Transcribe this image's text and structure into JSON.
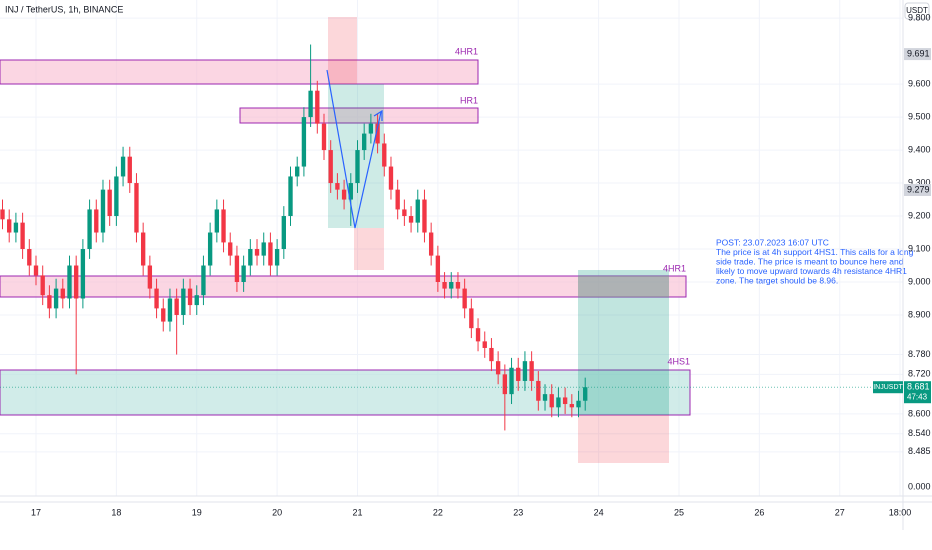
{
  "header": "INJ / TetherUS, 1h, BINANCE",
  "currency_button": "USDT",
  "chart_data": {
    "type": "candlestick",
    "up_color": "#089981",
    "down_color": "#f23645",
    "grid": true,
    "xlim": [
      -10.75,
      258
    ],
    "xticks": [
      {
        "value": 0,
        "label": "17"
      },
      {
        "value": 24,
        "label": "18"
      },
      {
        "value": 48,
        "label": "19"
      },
      {
        "value": 72,
        "label": "20"
      },
      {
        "value": 96,
        "label": "21"
      },
      {
        "value": 120,
        "label": "22"
      },
      {
        "value": 144,
        "label": "23"
      },
      {
        "value": 168,
        "label": "24"
      },
      {
        "value": 192,
        "label": "25"
      },
      {
        "value": 216,
        "label": "26"
      },
      {
        "value": 240,
        "label": "27"
      },
      {
        "value": 258,
        "label": "18:00"
      }
    ],
    "ylim": [
      8.43,
      9.855
    ],
    "yticks": [
      {
        "value": 9.8,
        "label": "9.800"
      },
      {
        "value": 9.6,
        "label": "9.600"
      },
      {
        "value": 9.5,
        "label": "9.500"
      },
      {
        "value": 9.4,
        "label": "9.400"
      },
      {
        "value": 9.3,
        "label": "9.300"
      },
      {
        "value": 9.2,
        "label": "9.200"
      },
      {
        "value": 9.1,
        "label": "9.100"
      },
      {
        "value": 9.0,
        "label": "9.000"
      },
      {
        "value": 8.9,
        "label": "8.900"
      },
      {
        "value": 8.78,
        "label": "8.780"
      },
      {
        "value": 8.72,
        "label": "8.720"
      },
      {
        "value": 8.6,
        "label": "8.600"
      },
      {
        "value": 8.54,
        "label": "8.540"
      },
      {
        "value": 8.485,
        "label": "8.485"
      }
    ],
    "lower_pane_tick": "0.000",
    "price_labels": [
      {
        "value": 9.691,
        "label": "9.691"
      },
      {
        "value": 9.279,
        "label": "9.279"
      }
    ],
    "last_price": {
      "symbol": "INJUSDT",
      "value": 8.681,
      "label": "8.681",
      "countdown": "47:43"
    },
    "zones": [
      {
        "label": "4HR1"
      },
      {
        "label": "HR1"
      },
      {
        "label": "4HR1"
      },
      {
        "label": "4HS1"
      }
    ],
    "annotation": [
      "POST: 23.07.2023 16:07 UTC",
      "The price is at 4h support 4HS1. This calls for a long",
      "side trade. The price is meant to bounce here and",
      "likely to move upward towards 4h resistance 4HR1",
      "zone. The target should be 8.96."
    ],
    "series": [
      {
        "name": "INJUSDT",
        "x": [
          -10,
          -8,
          -6,
          -4,
          -2,
          0,
          2,
          4,
          6,
          8,
          10,
          12,
          14,
          16,
          18,
          20,
          22,
          24,
          26,
          28,
          30,
          32,
          34,
          36,
          38,
          40,
          42,
          44,
          46,
          48,
          50,
          52,
          54,
          56,
          58,
          60,
          62,
          64,
          66,
          68,
          70,
          72,
          74,
          76,
          78,
          80,
          82,
          84,
          86,
          88,
          90,
          92,
          94,
          96,
          98,
          100,
          102,
          104,
          106,
          108,
          110,
          112,
          114,
          116,
          118,
          120,
          122,
          124,
          126,
          128,
          130,
          132,
          134,
          136,
          138,
          140,
          142,
          144,
          146,
          148,
          150,
          152,
          154,
          156,
          158,
          160,
          162,
          164
        ],
        "open": [
          9.22,
          9.19,
          9.15,
          9.18,
          9.1,
          9.05,
          9.02,
          8.96,
          8.92,
          8.98,
          8.95,
          9.05,
          8.95,
          9.1,
          9.22,
          9.15,
          9.28,
          9.2,
          9.32,
          9.38,
          9.3,
          9.15,
          9.05,
          8.98,
          8.92,
          8.88,
          8.95,
          8.9,
          8.98,
          8.93,
          8.96,
          9.05,
          9.15,
          9.22,
          9.12,
          9.08,
          9.0,
          9.05,
          9.1,
          9.08,
          9.12,
          9.05,
          9.1,
          9.2,
          9.32,
          9.35,
          9.5,
          9.58,
          9.48,
          9.4,
          9.3,
          9.28,
          9.25,
          9.3,
          9.4,
          9.45,
          9.48,
          9.42,
          9.35,
          9.28,
          9.22,
          9.2,
          9.18,
          9.25,
          9.15,
          9.08,
          9.0,
          8.98,
          9.0,
          8.98,
          8.92,
          8.86,
          8.82,
          8.8,
          8.76,
          8.72,
          8.66,
          8.74,
          8.7,
          8.76,
          8.7,
          8.64,
          8.66,
          8.62,
          8.65,
          8.63,
          8.62,
          8.64
        ],
        "high": [
          9.25,
          9.22,
          9.21,
          9.21,
          9.13,
          9.08,
          9.05,
          8.99,
          9.01,
          9.01,
          9.08,
          9.08,
          9.13,
          9.25,
          9.25,
          9.31,
          9.31,
          9.35,
          9.41,
          9.41,
          9.33,
          9.18,
          9.08,
          9.01,
          8.95,
          8.98,
          8.98,
          9.01,
          9.01,
          8.99,
          9.08,
          9.18,
          9.25,
          9.25,
          9.15,
          9.11,
          9.08,
          9.13,
          9.13,
          9.15,
          9.15,
          9.13,
          9.23,
          9.35,
          9.38,
          9.53,
          9.72,
          9.61,
          9.51,
          9.43,
          9.33,
          9.31,
          9.33,
          9.43,
          9.48,
          9.51,
          9.51,
          9.45,
          9.38,
          9.31,
          9.25,
          9.23,
          9.28,
          9.28,
          9.18,
          9.11,
          9.03,
          9.03,
          9.03,
          9.01,
          8.95,
          8.89,
          8.85,
          8.83,
          8.79,
          8.75,
          8.77,
          8.77,
          8.79,
          8.79,
          8.73,
          8.69,
          8.69,
          8.68,
          8.68,
          8.66,
          8.67,
          8.71
        ],
        "low": [
          9.16,
          9.12,
          9.12,
          9.07,
          9.02,
          8.99,
          8.93,
          8.89,
          8.89,
          8.92,
          8.92,
          8.72,
          8.92,
          9.07,
          9.12,
          9.12,
          9.17,
          9.17,
          9.29,
          9.27,
          9.12,
          9.02,
          8.95,
          8.89,
          8.85,
          8.85,
          8.78,
          8.87,
          8.9,
          8.9,
          8.93,
          9.02,
          9.12,
          9.09,
          9.05,
          8.97,
          8.97,
          9.02,
          9.05,
          9.05,
          9.02,
          9.02,
          9.07,
          9.17,
          9.29,
          9.32,
          9.47,
          9.45,
          9.37,
          9.27,
          9.25,
          9.22,
          9.17,
          9.27,
          9.37,
          9.42,
          9.39,
          9.32,
          9.25,
          9.19,
          9.17,
          9.15,
          9.15,
          9.12,
          9.05,
          8.97,
          8.95,
          8.95,
          8.95,
          8.89,
          8.83,
          8.79,
          8.77,
          8.73,
          8.69,
          8.55,
          8.63,
          8.67,
          8.67,
          8.67,
          8.61,
          8.61,
          8.59,
          8.59,
          8.6,
          8.59,
          8.59,
          8.61
        ],
        "close": [
          9.19,
          9.15,
          9.18,
          9.1,
          9.05,
          9.02,
          8.96,
          8.92,
          8.98,
          8.95,
          9.05,
          8.95,
          9.1,
          9.22,
          9.15,
          9.28,
          9.2,
          9.32,
          9.38,
          9.3,
          9.15,
          9.05,
          8.98,
          8.92,
          8.88,
          8.95,
          8.9,
          8.98,
          8.93,
          8.96,
          9.05,
          9.15,
          9.22,
          9.12,
          9.08,
          9.0,
          9.05,
          9.1,
          9.08,
          9.12,
          9.05,
          9.1,
          9.2,
          9.32,
          9.35,
          9.5,
          9.58,
          9.48,
          9.4,
          9.3,
          9.28,
          9.25,
          9.3,
          9.4,
          9.45,
          9.48,
          9.42,
          9.35,
          9.28,
          9.22,
          9.2,
          9.18,
          9.25,
          9.15,
          9.08,
          9.0,
          8.98,
          9.0,
          8.98,
          8.92,
          8.86,
          8.82,
          8.8,
          8.76,
          8.72,
          8.66,
          8.74,
          8.7,
          8.76,
          8.7,
          8.64,
          8.66,
          8.62,
          8.65,
          8.63,
          8.62,
          8.64,
          8.681
        ]
      }
    ]
  }
}
